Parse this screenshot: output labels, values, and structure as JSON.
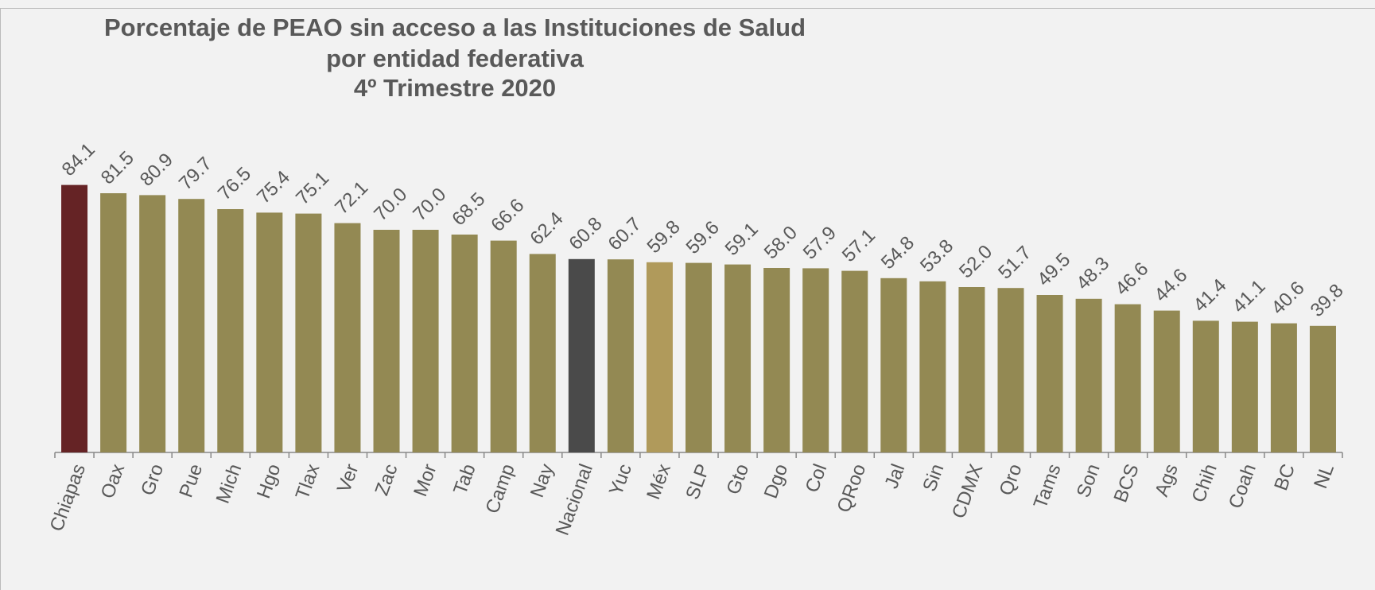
{
  "chart_data": {
    "type": "bar",
    "title": [
      "Porcentaje de PEAO sin acceso a las Instituciones de Salud",
      "por entidad federativa",
      "4º Trimestre 2020"
    ],
    "categories": [
      "Chiapas",
      "Oax",
      "Gro",
      "Pue",
      "Mich",
      "Hgo",
      "Tlax",
      "Ver",
      "Zac",
      "Mor",
      "Tab",
      "Camp",
      "Nay",
      "Nacional",
      "Yuc",
      "Méx",
      "SLP",
      "Gto",
      "Dgo",
      "Col",
      "QRoo",
      "Jal",
      "Sin",
      "CDMX",
      "Qro",
      "Tams",
      "Son",
      "BCS",
      "Ags",
      "Chih",
      "Coah",
      "BC",
      "NL"
    ],
    "values": [
      84.1,
      81.5,
      80.9,
      79.7,
      76.5,
      75.4,
      75.1,
      72.1,
      70.0,
      70.0,
      68.5,
      66.6,
      62.4,
      60.8,
      60.7,
      59.8,
      59.6,
      59.1,
      58.0,
      57.9,
      57.1,
      54.8,
      53.8,
      52.0,
      51.7,
      49.5,
      48.3,
      46.6,
      44.6,
      41.4,
      41.1,
      40.6,
      39.8
    ],
    "value_labels": [
      "84.1",
      "81.5",
      "80.9",
      "79.7",
      "76.5",
      "75.4",
      "75.1",
      "72.1",
      "70.0",
      "70.0",
      "68.5",
      "66.6",
      "62.4",
      "60.8",
      "60.7",
      "59.8",
      "59.6",
      "59.1",
      "58.0",
      "57.9",
      "57.1",
      "54.8",
      "53.8",
      "52.0",
      "51.7",
      "49.5",
      "48.3",
      "46.6",
      "44.6",
      "41.4",
      "41.1",
      "40.6",
      "39.8"
    ],
    "colors": [
      "#652325",
      "#938953",
      "#938953",
      "#938953",
      "#938953",
      "#938953",
      "#938953",
      "#938953",
      "#938953",
      "#938953",
      "#938953",
      "#938953",
      "#938953",
      "#4a4a4a",
      "#938953",
      "#b09a5b",
      "#938953",
      "#938953",
      "#938953",
      "#938953",
      "#938953",
      "#938953",
      "#938953",
      "#938953",
      "#938953",
      "#938953",
      "#938953",
      "#938953",
      "#938953",
      "#938953",
      "#938953",
      "#938953",
      "#938953"
    ]
  }
}
